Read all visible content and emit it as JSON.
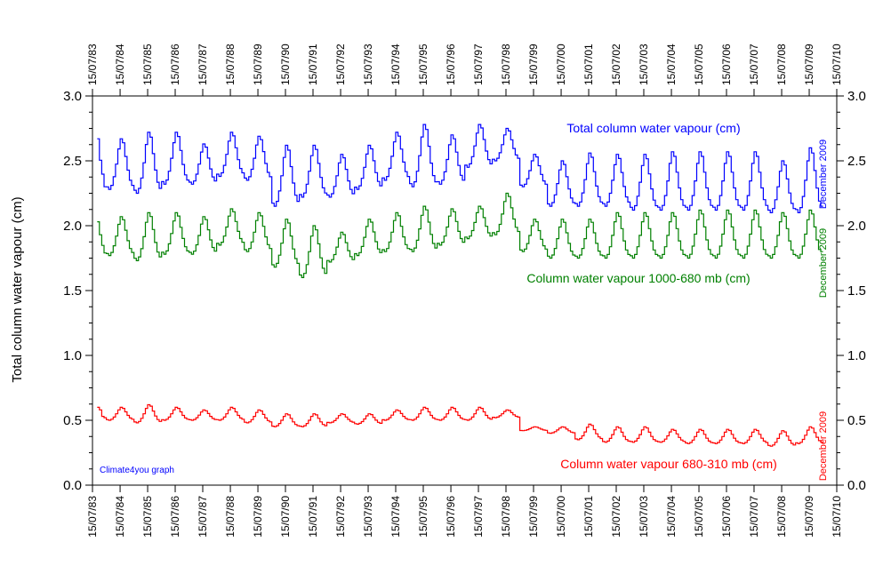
{
  "chart_data": {
    "type": "line",
    "ylabel": "Total column water vapour (cm)",
    "ylim": [
      0.0,
      3.0
    ],
    "y_ticks": [
      "0.0",
      "0.5",
      "1.0",
      "1.5",
      "2.0",
      "2.5",
      "3.0"
    ],
    "x_range": [
      "1983-07-15",
      "2010-07-15"
    ],
    "x_tick_labels": [
      "15/07/83",
      "15/07/84",
      "15/07/85",
      "15/07/86",
      "15/07/87",
      "15/07/88",
      "15/07/89",
      "15/07/90",
      "15/07/91",
      "15/07/92",
      "15/07/93",
      "15/07/94",
      "15/07/95",
      "15/07/96",
      "15/07/97",
      "15/07/98",
      "15/07/99",
      "15/07/00",
      "15/07/01",
      "15/07/02",
      "15/07/03",
      "15/07/04",
      "15/07/05",
      "15/07/06",
      "15/07/07",
      "15/07/08",
      "15/07/09",
      "15/07/10"
    ],
    "x_tick_dates": [
      "1983-07-15",
      "1984-07-15",
      "1985-07-15",
      "1986-07-15",
      "1987-07-15",
      "1988-07-15",
      "1989-07-15",
      "1990-07-15",
      "1991-07-15",
      "1992-07-15",
      "1993-07-15",
      "1994-07-15",
      "1995-07-15",
      "1996-07-15",
      "1997-07-15",
      "1998-07-15",
      "1999-07-15",
      "2000-07-15",
      "2001-07-15",
      "2002-07-15",
      "2003-07-15",
      "2004-07-15",
      "2005-07-15",
      "2006-07-15",
      "2007-07-15",
      "2008-07-15",
      "2009-07-15",
      "2010-07-15"
    ],
    "grid": false,
    "credit": "Climate4you graph",
    "series": [
      {
        "name": "Total column water vapour (cm)",
        "end_label": "December 2009",
        "color": "#0000ff",
        "step": true,
        "years": [
          1984,
          1985,
          1986,
          1987,
          1988,
          1989,
          1990,
          1991,
          1992,
          1993,
          1994,
          1995,
          1996,
          1997,
          1998,
          1999,
          2000,
          2001,
          2002,
          2003,
          2004,
          2005,
          2006,
          2007,
          2008,
          2009
        ],
        "annual_min": [
          2.28,
          2.25,
          2.32,
          2.32,
          2.38,
          2.35,
          2.15,
          2.22,
          2.22,
          2.28,
          2.35,
          2.3,
          2.32,
          2.45,
          2.5,
          2.3,
          2.15,
          2.15,
          2.15,
          2.12,
          2.12,
          2.12,
          2.12,
          2.12,
          2.1,
          2.1
        ],
        "annual_max": [
          2.67,
          2.72,
          2.72,
          2.63,
          2.72,
          2.69,
          2.62,
          2.62,
          2.55,
          2.62,
          2.72,
          2.78,
          2.7,
          2.78,
          2.75,
          2.55,
          2.5,
          2.56,
          2.55,
          2.55,
          2.57,
          2.57,
          2.57,
          2.57,
          2.5,
          2.6
        ],
        "first": {
          "date": "1983-09-15",
          "value": 2.67
        },
        "last": {
          "date": "2009-12-15",
          "value": 2.15
        }
      },
      {
        "name": "Column water vapour 1000-680 mb (cm)",
        "end_label": "December 2009",
        "color": "#008000",
        "step": true,
        "years": [
          1984,
          1985,
          1986,
          1987,
          1988,
          1989,
          1990,
          1991,
          1992,
          1993,
          1994,
          1995,
          1996,
          1997,
          1998,
          1999,
          2000,
          2001,
          2002,
          2003,
          2004,
          2005,
          2006,
          2007,
          2008,
          2009
        ],
        "annual_min": [
          1.77,
          1.73,
          1.78,
          1.78,
          1.85,
          1.8,
          1.68,
          1.6,
          1.72,
          1.77,
          1.8,
          1.8,
          1.85,
          1.9,
          1.93,
          1.8,
          1.75,
          1.75,
          1.75,
          1.75,
          1.75,
          1.75,
          1.75,
          1.75,
          1.75,
          1.75
        ],
        "annual_max": [
          2.07,
          2.1,
          2.1,
          2.07,
          2.13,
          2.1,
          2.05,
          2.0,
          1.95,
          2.05,
          2.1,
          2.15,
          2.13,
          2.15,
          2.25,
          2.05,
          2.05,
          2.05,
          2.1,
          2.1,
          2.1,
          2.12,
          2.12,
          2.12,
          2.1,
          2.12
        ],
        "first": {
          "date": "1983-09-15",
          "value": 2.03
        },
        "last": {
          "date": "2009-12-15",
          "value": 1.8
        }
      },
      {
        "name": "Column water vapour 680-310 mb (cm)",
        "end_label": "December 2009",
        "color": "#ff0000",
        "step": true,
        "years": [
          1984,
          1985,
          1986,
          1987,
          1988,
          1989,
          1990,
          1991,
          1992,
          1993,
          1994,
          1995,
          1996,
          1997,
          1998,
          1999,
          2000,
          2001,
          2002,
          2003,
          2004,
          2005,
          2006,
          2007,
          2008,
          2009
        ],
        "annual_min": [
          0.5,
          0.48,
          0.5,
          0.5,
          0.5,
          0.48,
          0.45,
          0.45,
          0.48,
          0.47,
          0.5,
          0.5,
          0.5,
          0.5,
          0.52,
          0.42,
          0.4,
          0.35,
          0.33,
          0.33,
          0.33,
          0.32,
          0.32,
          0.32,
          0.3,
          0.32
        ],
        "annual_max": [
          0.6,
          0.62,
          0.6,
          0.58,
          0.6,
          0.58,
          0.55,
          0.55,
          0.55,
          0.55,
          0.58,
          0.6,
          0.6,
          0.6,
          0.58,
          0.45,
          0.45,
          0.47,
          0.45,
          0.45,
          0.43,
          0.43,
          0.43,
          0.43,
          0.42,
          0.45
        ],
        "first": {
          "date": "1983-09-15",
          "value": 0.6
        },
        "last": {
          "date": "2009-12-15",
          "value": 0.33
        }
      }
    ]
  }
}
